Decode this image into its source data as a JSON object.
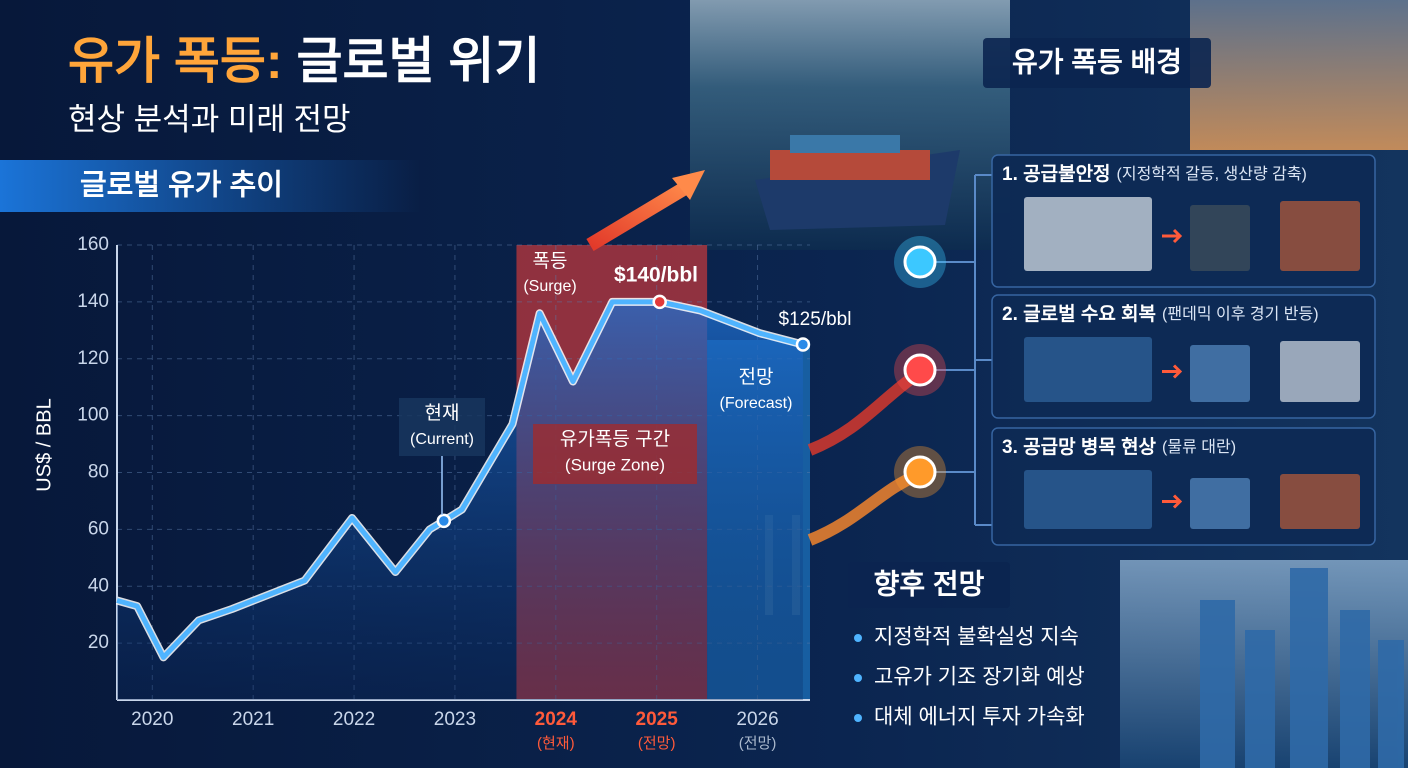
{
  "header": {
    "title_highlight": "유가 폭등:",
    "title_rest": "글로벌 위기",
    "subtitle": "현상 분석과 미래 전망"
  },
  "chart_data": {
    "type": "line",
    "title": "글로벌 유가 추이",
    "y_label": "US$ / BBL",
    "x": [
      2019.65,
      2019.85,
      2020.11,
      2020.46,
      2020.79,
      2021.51,
      2021.98,
      2022.41,
      2022.75,
      2022.89,
      2023.07,
      2023.57,
      2023.84,
      2024.17,
      2024.56,
      2025.03,
      2025.43,
      2026.02,
      2026.45
    ],
    "values": [
      35,
      33,
      15,
      28,
      32,
      42,
      64,
      45,
      60,
      63,
      67,
      97,
      136,
      112,
      140,
      140,
      137,
      129,
      125
    ],
    "color": "#4fb4ff",
    "xlim": [
      2019.65,
      2026.52
    ],
    "xticks": [
      2020,
      2021,
      2022,
      2023,
      2024,
      2025,
      2026
    ],
    "xtick_notes": [
      null,
      null,
      null,
      null,
      "(현재)",
      "(전망)",
      "(전망)"
    ],
    "ylim": [
      0,
      160
    ],
    "yticks": [
      20,
      40,
      60,
      80,
      100,
      120,
      140,
      160
    ],
    "grid": true,
    "zones": [
      {
        "label": "유가폭등 구간",
        "sublabel": "(Surge Zone)",
        "xlim": [
          2023.61,
          2025.5
        ],
        "color": "#d93a3a"
      },
      {
        "xlim": [
          2025.5,
          2026.52
        ],
        "color": "#1f86d8"
      }
    ],
    "annotations": [
      {
        "text": "현재",
        "subtext": "(Current)",
        "point": [
          2022.89,
          63
        ]
      },
      {
        "text": "폭등",
        "subtext": "(Surge)"
      },
      {
        "text": "$140/bbl",
        "point": [
          2025.03,
          140
        ]
      },
      {
        "text": "$125/bbl",
        "point": [
          2026.45,
          125
        ]
      },
      {
        "text": "전망",
        "subtext": "(Forecast)"
      }
    ]
  },
  "background": {
    "title": "유가 폭등 배경",
    "items": [
      {
        "title": "1. 공급불안정",
        "note": "(지정학적 갈등, 생산량 감축)",
        "color": "#3cc8ff"
      },
      {
        "title": "2. 글로벌 수요 회복",
        "note": "(팬데믹 이후 경기 반등)",
        "color": "#ff4a4a"
      },
      {
        "title": "3. 공급망 병목 현상",
        "note": "(물류 대란)",
        "color": "#ff9a2a"
      }
    ]
  },
  "outlook": {
    "title": "향후 전망",
    "items": [
      "지정학적 불확실성 지속",
      "고유가 기조 장기화 예상",
      "대체 에너지 투자 가속화"
    ]
  }
}
